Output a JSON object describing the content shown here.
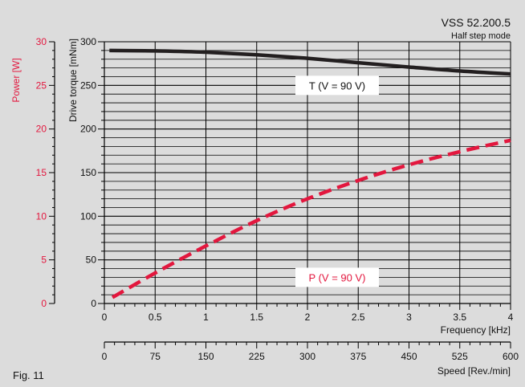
{
  "figure_label": "Fig. 11",
  "colors": {
    "background": "#dcdcdc",
    "torque": "#231f20",
    "power": "#e3173e",
    "grid": "#000000",
    "label_box": "#ffffff"
  },
  "chart_data": {
    "type": "line",
    "title": "VSS 52.200.5",
    "subtitle": "Half step mode",
    "x_axis": {
      "label": "Frequency [kHz]",
      "range": [
        0,
        4
      ],
      "ticks": [
        "0",
        "0.5",
        "1",
        "1.5",
        "2",
        "2.5",
        "3",
        "3.5",
        "4"
      ]
    },
    "x2_axis": {
      "label": "Speed [Rev./min]",
      "range": [
        0,
        600
      ],
      "ticks": [
        "0",
        "75",
        "150",
        "225",
        "300",
        "375",
        "450",
        "525",
        "600"
      ]
    },
    "y_axis": {
      "label": "Drive torque [mNm]",
      "range": [
        0,
        300
      ],
      "ticks": [
        "0",
        "50",
        "100",
        "150",
        "200",
        "250",
        "300"
      ]
    },
    "y2_axis": {
      "label": "Power [W]",
      "range": [
        0,
        30
      ],
      "ticks": [
        "0",
        "5",
        "10",
        "15",
        "20",
        "25",
        "30"
      ]
    },
    "grid": true,
    "series": [
      {
        "name": "T (V = 90 V)",
        "axis": "torque",
        "style": "solid",
        "x": [
          0.05,
          0.5,
          1.0,
          1.5,
          2.0,
          2.5,
          3.0,
          3.5,
          4.0
        ],
        "y": [
          290,
          289.5,
          288,
          285,
          281,
          276,
          271,
          266.5,
          263
        ]
      },
      {
        "name": "P (V = 90 V)",
        "axis": "power",
        "style": "dashed",
        "x": [
          0.08,
          0.5,
          1.0,
          1.5,
          2.0,
          2.5,
          3.0,
          3.5,
          4.0
        ],
        "y": [
          0.7,
          3.5,
          6.6,
          9.5,
          12.0,
          14.1,
          15.9,
          17.4,
          18.7
        ]
      }
    ]
  }
}
